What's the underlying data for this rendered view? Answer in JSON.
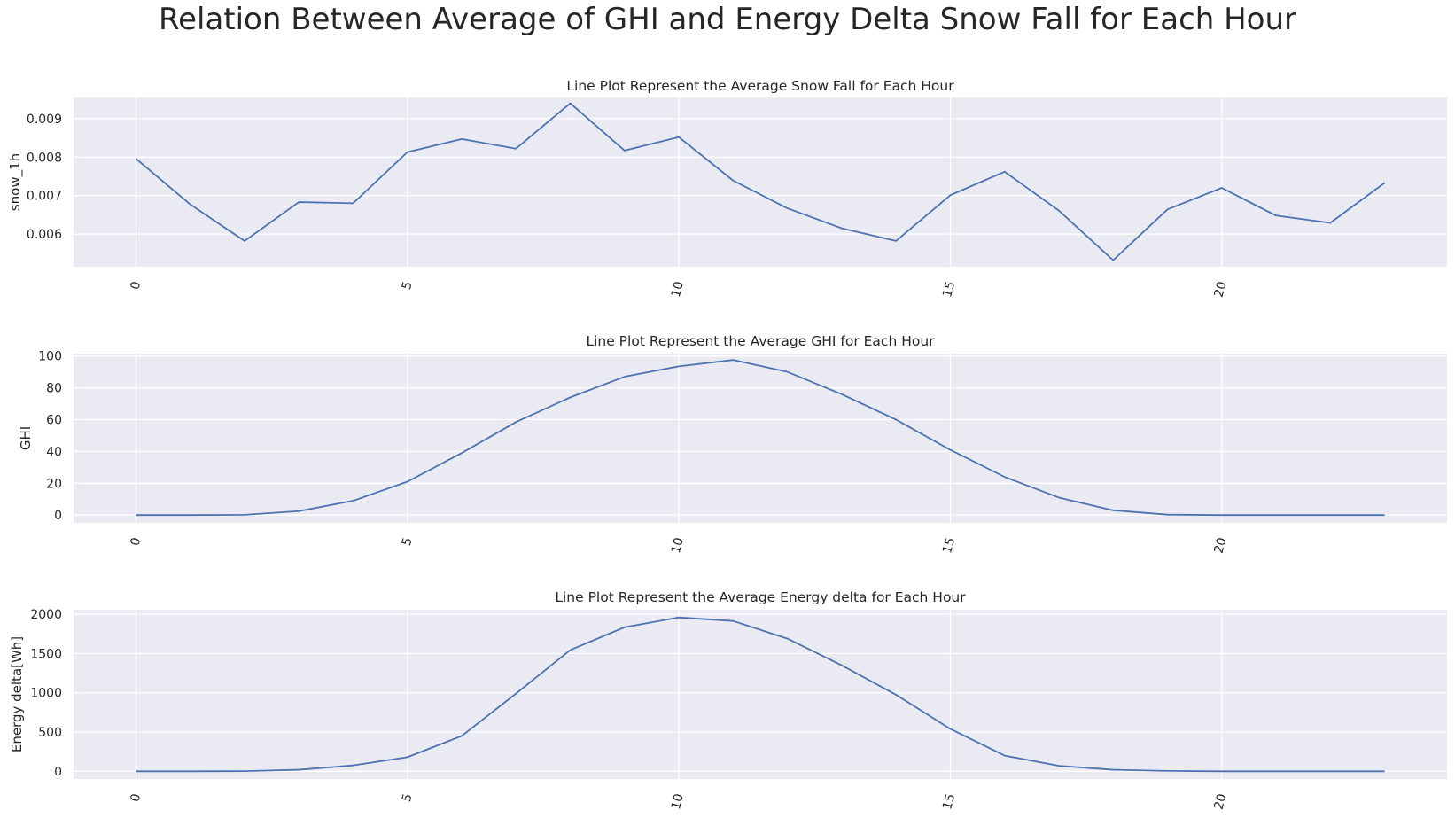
{
  "figure": {
    "title": "Relation Between Average of GHI and Energy Delta Snow Fall for Each Hour"
  },
  "style": {
    "background": "#eaeaf2",
    "grid": "#ffffff",
    "line": "#4c72b0"
  },
  "chart_data": [
    {
      "type": "line",
      "title": "Line Plot Represent the Average Snow Fall for Each Hour",
      "xlabel": "",
      "ylabel": "snow_1h",
      "x": [
        0,
        1,
        2,
        3,
        4,
        5,
        6,
        7,
        8,
        9,
        10,
        11,
        12,
        13,
        14,
        15,
        16,
        17,
        18,
        19,
        20,
        21,
        22,
        23
      ],
      "values": [
        0.00796,
        0.00677,
        0.00582,
        0.00683,
        0.0068,
        0.00813,
        0.00847,
        0.00822,
        0.0094,
        0.00817,
        0.00852,
        0.00739,
        0.00667,
        0.00615,
        0.00582,
        0.00701,
        0.00762,
        0.00661,
        0.00532,
        0.00664,
        0.0072,
        0.00648,
        0.00629,
        0.00733
      ],
      "xticks": [
        0,
        5,
        10,
        15,
        20
      ],
      "yticks": [
        0.006,
        0.007,
        0.008,
        0.009
      ],
      "ytick_labels": [
        "0.006",
        "0.007",
        "0.008",
        "0.009"
      ],
      "xlim": [
        -1.15,
        24.15
      ],
      "ylim": [
        0.00515,
        0.00955
      ],
      "grid": true
    },
    {
      "type": "line",
      "title": "Line Plot Represent the Average GHI for Each Hour",
      "xlabel": "",
      "ylabel": "GHI",
      "x": [
        0,
        1,
        2,
        3,
        4,
        5,
        6,
        7,
        8,
        9,
        10,
        11,
        12,
        13,
        14,
        15,
        16,
        17,
        18,
        19,
        20,
        21,
        22,
        23
      ],
      "values": [
        0,
        0,
        0.2,
        2.5,
        9,
        21,
        39,
        58.5,
        74,
        87,
        93.5,
        97.5,
        90,
        76,
        60,
        41,
        24,
        11,
        3,
        0.3,
        0,
        0,
        0,
        0
      ],
      "xticks": [
        0,
        5,
        10,
        15,
        20
      ],
      "yticks": [
        0,
        20,
        40,
        60,
        80,
        100
      ],
      "ytick_labels": [
        "0",
        "20",
        "40",
        "60",
        "80",
        "100"
      ],
      "xlim": [
        -1.15,
        24.15
      ],
      "ylim": [
        -4.9,
        101.5
      ],
      "grid": true
    },
    {
      "type": "line",
      "title": "Line Plot Represent the Average Energy delta for Each Hour",
      "xlabel": "",
      "ylabel": "Energy delta[Wh]",
      "x": [
        0,
        1,
        2,
        3,
        4,
        5,
        6,
        7,
        8,
        9,
        10,
        11,
        12,
        13,
        14,
        15,
        16,
        17,
        18,
        19,
        20,
        21,
        22,
        23
      ],
      "values": [
        0,
        0,
        2,
        20,
        75,
        180,
        450,
        990,
        1545,
        1835,
        1960,
        1915,
        1690,
        1350,
        975,
        540,
        200,
        70,
        20,
        5,
        0,
        0,
        0,
        0
      ],
      "xticks": [
        0,
        5,
        10,
        15,
        20
      ],
      "yticks": [
        0,
        500,
        1000,
        1500,
        2000
      ],
      "ytick_labels": [
        "0",
        "500",
        "1000",
        "1500",
        "2000"
      ],
      "xlim": [
        -1.15,
        24.15
      ],
      "ylim": [
        -98,
        2058
      ],
      "grid": true
    }
  ]
}
